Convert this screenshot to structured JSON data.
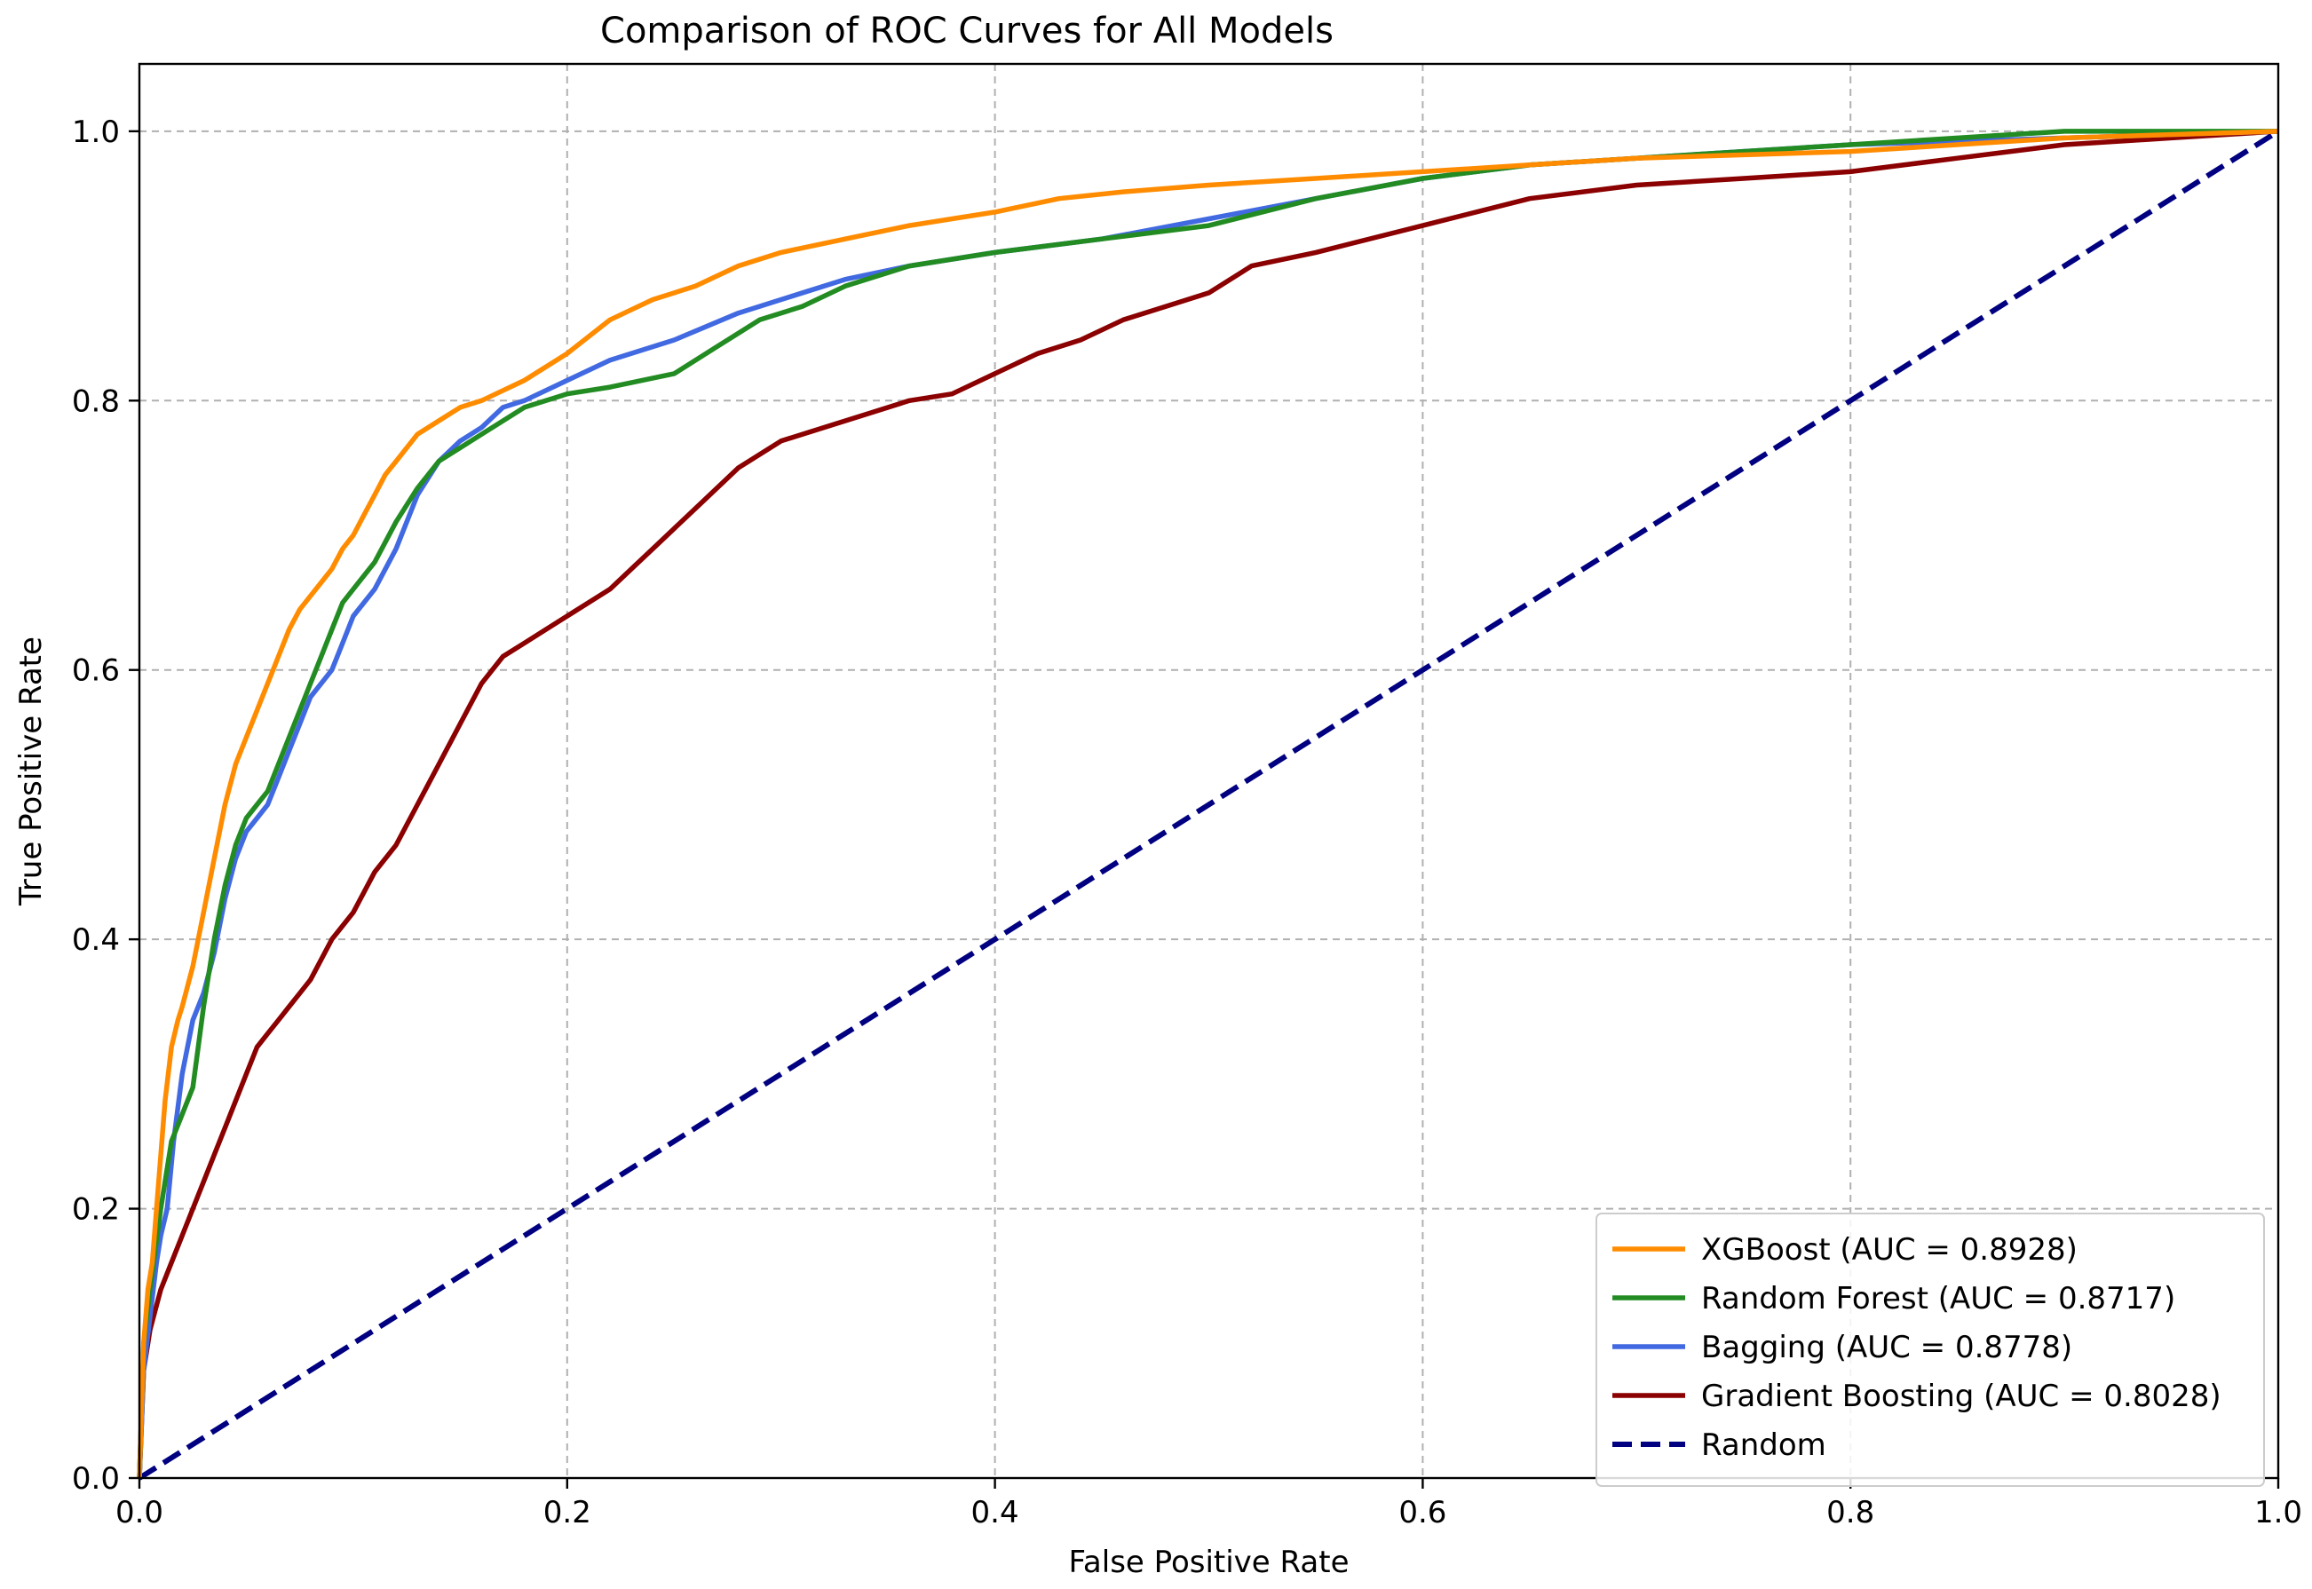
{
  "chart_data": {
    "type": "line",
    "title": "Comparison of ROC Curves for All Models",
    "xlabel": "False Positive Rate",
    "ylabel": "True Positive Rate",
    "xlim": [
      0.0,
      1.0
    ],
    "ylim": [
      0.0,
      1.05
    ],
    "xticks": [
      0.0,
      0.2,
      0.4,
      0.6,
      0.8,
      1.0
    ],
    "yticks": [
      0.0,
      0.2,
      0.4,
      0.6,
      0.8,
      1.0
    ],
    "xtick_labels": [
      "0.0",
      "0.2",
      "0.4",
      "0.6",
      "0.8",
      "1.0"
    ],
    "ytick_labels": [
      "0.0",
      "0.2",
      "0.4",
      "0.6",
      "0.8",
      "1.0"
    ],
    "grid": true,
    "legend_position": "lower-right",
    "series": [
      {
        "name": "XGBoost (AUC = 0.8928)",
        "color": "#ff8c00",
        "style": "solid",
        "x": [
          0.0,
          0.002,
          0.004,
          0.006,
          0.008,
          0.01,
          0.012,
          0.015,
          0.018,
          0.02,
          0.025,
          0.03,
          0.035,
          0.04,
          0.045,
          0.05,
          0.055,
          0.06,
          0.065,
          0.07,
          0.075,
          0.08,
          0.085,
          0.09,
          0.095,
          0.1,
          0.105,
          0.11,
          0.115,
          0.12,
          0.13,
          0.14,
          0.15,
          0.16,
          0.18,
          0.2,
          0.22,
          0.24,
          0.26,
          0.28,
          0.3,
          0.33,
          0.36,
          0.4,
          0.43,
          0.46,
          0.5,
          0.55,
          0.6,
          0.65,
          0.7,
          0.8,
          0.9,
          1.0
        ],
        "y": [
          0.0,
          0.1,
          0.14,
          0.16,
          0.2,
          0.24,
          0.28,
          0.32,
          0.34,
          0.35,
          0.38,
          0.42,
          0.46,
          0.5,
          0.53,
          0.55,
          0.57,
          0.59,
          0.61,
          0.63,
          0.645,
          0.655,
          0.665,
          0.675,
          0.69,
          0.7,
          0.715,
          0.73,
          0.745,
          0.755,
          0.775,
          0.785,
          0.795,
          0.8,
          0.815,
          0.835,
          0.86,
          0.875,
          0.885,
          0.9,
          0.91,
          0.92,
          0.93,
          0.94,
          0.95,
          0.955,
          0.96,
          0.965,
          0.97,
          0.975,
          0.98,
          0.985,
          0.995,
          1.0
        ]
      },
      {
        "name": "Random Forest (AUC = 0.8717)",
        "color": "#228b22",
        "style": "solid",
        "x": [
          0.0,
          0.002,
          0.005,
          0.01,
          0.015,
          0.02,
          0.025,
          0.03,
          0.035,
          0.04,
          0.045,
          0.05,
          0.055,
          0.06,
          0.065,
          0.07,
          0.075,
          0.08,
          0.085,
          0.09,
          0.095,
          0.1,
          0.11,
          0.12,
          0.13,
          0.14,
          0.15,
          0.16,
          0.18,
          0.2,
          0.22,
          0.25,
          0.27,
          0.29,
          0.31,
          0.33,
          0.36,
          0.4,
          0.45,
          0.5,
          0.55,
          0.6,
          0.65,
          0.7,
          0.75,
          0.8,
          0.9,
          1.0
        ],
        "y": [
          0.0,
          0.1,
          0.14,
          0.2,
          0.25,
          0.27,
          0.29,
          0.35,
          0.4,
          0.44,
          0.47,
          0.49,
          0.5,
          0.51,
          0.53,
          0.55,
          0.57,
          0.59,
          0.61,
          0.63,
          0.65,
          0.66,
          0.68,
          0.71,
          0.735,
          0.755,
          0.765,
          0.775,
          0.795,
          0.805,
          0.81,
          0.82,
          0.84,
          0.86,
          0.87,
          0.885,
          0.9,
          0.91,
          0.92,
          0.93,
          0.95,
          0.965,
          0.975,
          0.98,
          0.985,
          0.99,
          1.0,
          1.0
        ]
      },
      {
        "name": "Bagging (AUC = 0.8778)",
        "color": "#4169e1",
        "style": "solid",
        "x": [
          0.0,
          0.002,
          0.005,
          0.008,
          0.01,
          0.013,
          0.016,
          0.02,
          0.025,
          0.03,
          0.035,
          0.04,
          0.045,
          0.05,
          0.055,
          0.06,
          0.065,
          0.07,
          0.075,
          0.08,
          0.085,
          0.09,
          0.095,
          0.1,
          0.11,
          0.12,
          0.13,
          0.14,
          0.15,
          0.16,
          0.17,
          0.18,
          0.2,
          0.22,
          0.25,
          0.28,
          0.3,
          0.33,
          0.36,
          0.4,
          0.45,
          0.5,
          0.55,
          0.6,
          0.65,
          0.7,
          0.8,
          0.9,
          1.0
        ],
        "y": [
          0.0,
          0.08,
          0.12,
          0.16,
          0.18,
          0.2,
          0.25,
          0.3,
          0.34,
          0.36,
          0.39,
          0.43,
          0.46,
          0.48,
          0.49,
          0.5,
          0.52,
          0.54,
          0.56,
          0.58,
          0.59,
          0.6,
          0.62,
          0.64,
          0.66,
          0.69,
          0.73,
          0.755,
          0.77,
          0.78,
          0.795,
          0.8,
          0.815,
          0.83,
          0.845,
          0.865,
          0.875,
          0.89,
          0.9,
          0.91,
          0.92,
          0.935,
          0.95,
          0.965,
          0.975,
          0.98,
          0.99,
          0.995,
          1.0
        ]
      },
      {
        "name": "Gradient Boosting (AUC = 0.8028)",
        "color": "#8b0000",
        "style": "solid",
        "x": [
          0.0,
          0.002,
          0.005,
          0.01,
          0.015,
          0.02,
          0.025,
          0.03,
          0.035,
          0.04,
          0.045,
          0.05,
          0.055,
          0.06,
          0.065,
          0.07,
          0.075,
          0.08,
          0.09,
          0.1,
          0.11,
          0.12,
          0.13,
          0.14,
          0.15,
          0.16,
          0.17,
          0.18,
          0.19,
          0.2,
          0.22,
          0.24,
          0.26,
          0.28,
          0.3,
          0.32,
          0.34,
          0.36,
          0.38,
          0.4,
          0.42,
          0.44,
          0.46,
          0.48,
          0.5,
          0.52,
          0.55,
          0.6,
          0.65,
          0.7,
          0.75,
          0.8,
          0.85,
          0.9,
          0.95,
          1.0
        ],
        "y": [
          0.0,
          0.08,
          0.11,
          0.14,
          0.16,
          0.18,
          0.2,
          0.22,
          0.24,
          0.26,
          0.28,
          0.3,
          0.32,
          0.33,
          0.34,
          0.35,
          0.36,
          0.37,
          0.4,
          0.42,
          0.45,
          0.47,
          0.5,
          0.53,
          0.56,
          0.59,
          0.61,
          0.62,
          0.63,
          0.64,
          0.66,
          0.69,
          0.72,
          0.75,
          0.77,
          0.78,
          0.79,
          0.8,
          0.805,
          0.82,
          0.835,
          0.845,
          0.86,
          0.87,
          0.88,
          0.9,
          0.91,
          0.93,
          0.95,
          0.96,
          0.965,
          0.97,
          0.98,
          0.99,
          0.995,
          1.0
        ]
      },
      {
        "name": "Random",
        "color": "#000080",
        "style": "dashed",
        "x": [
          0.0,
          1.0
        ],
        "y": [
          0.0,
          1.0
        ]
      }
    ]
  }
}
